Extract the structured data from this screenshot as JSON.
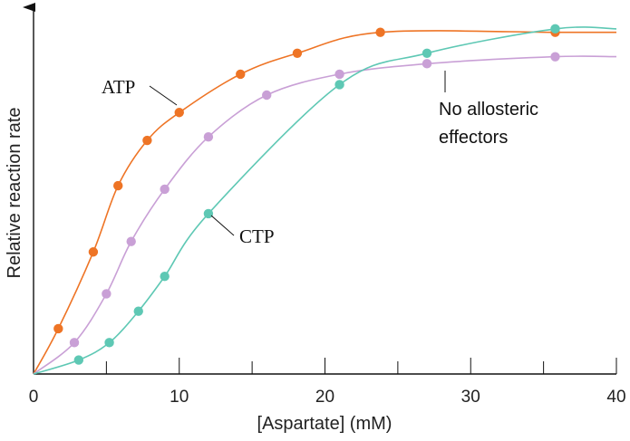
{
  "chart_data": {
    "type": "scatter",
    "xlabel": "[Aspartate] (mM)",
    "ylabel": "Relative reaction rate",
    "xlim": [
      0,
      40
    ],
    "xticks": [
      0,
      10,
      20,
      30,
      40
    ],
    "xticks_minor": [
      5,
      15,
      25,
      35
    ],
    "ylim": [
      0,
      1
    ],
    "y_tick_labels": false,
    "grid": false,
    "legend": "none",
    "series": [
      {
        "name": "ATP",
        "color": "#ee7425",
        "points": [
          [
            1.7,
            0.13
          ],
          [
            4.1,
            0.35
          ],
          [
            5.8,
            0.54
          ],
          [
            7.8,
            0.67
          ],
          [
            10.0,
            0.75
          ],
          [
            14.2,
            0.86
          ],
          [
            18.1,
            0.92
          ],
          [
            23.8,
            0.98
          ],
          [
            35.8,
            0.98
          ]
        ]
      },
      {
        "name": "No allosteric effectors",
        "color": "#c9a0d6",
        "points": [
          [
            2.8,
            0.09
          ],
          [
            5.0,
            0.23
          ],
          [
            6.7,
            0.38
          ],
          [
            9.0,
            0.53
          ],
          [
            12.0,
            0.68
          ],
          [
            16.0,
            0.8
          ],
          [
            21.0,
            0.86
          ],
          [
            27.0,
            0.89
          ],
          [
            35.8,
            0.91
          ]
        ]
      },
      {
        "name": "CTP",
        "color": "#5ec8b4",
        "points": [
          [
            3.1,
            0.04
          ],
          [
            5.2,
            0.09
          ],
          [
            7.2,
            0.18
          ],
          [
            9.0,
            0.28
          ],
          [
            12.0,
            0.46
          ],
          [
            21.0,
            0.83
          ],
          [
            27.0,
            0.92
          ],
          [
            35.8,
            0.99
          ]
        ]
      }
    ],
    "annotations": [
      "ATP",
      "CTP",
      "No allosteric",
      "effectors"
    ]
  }
}
